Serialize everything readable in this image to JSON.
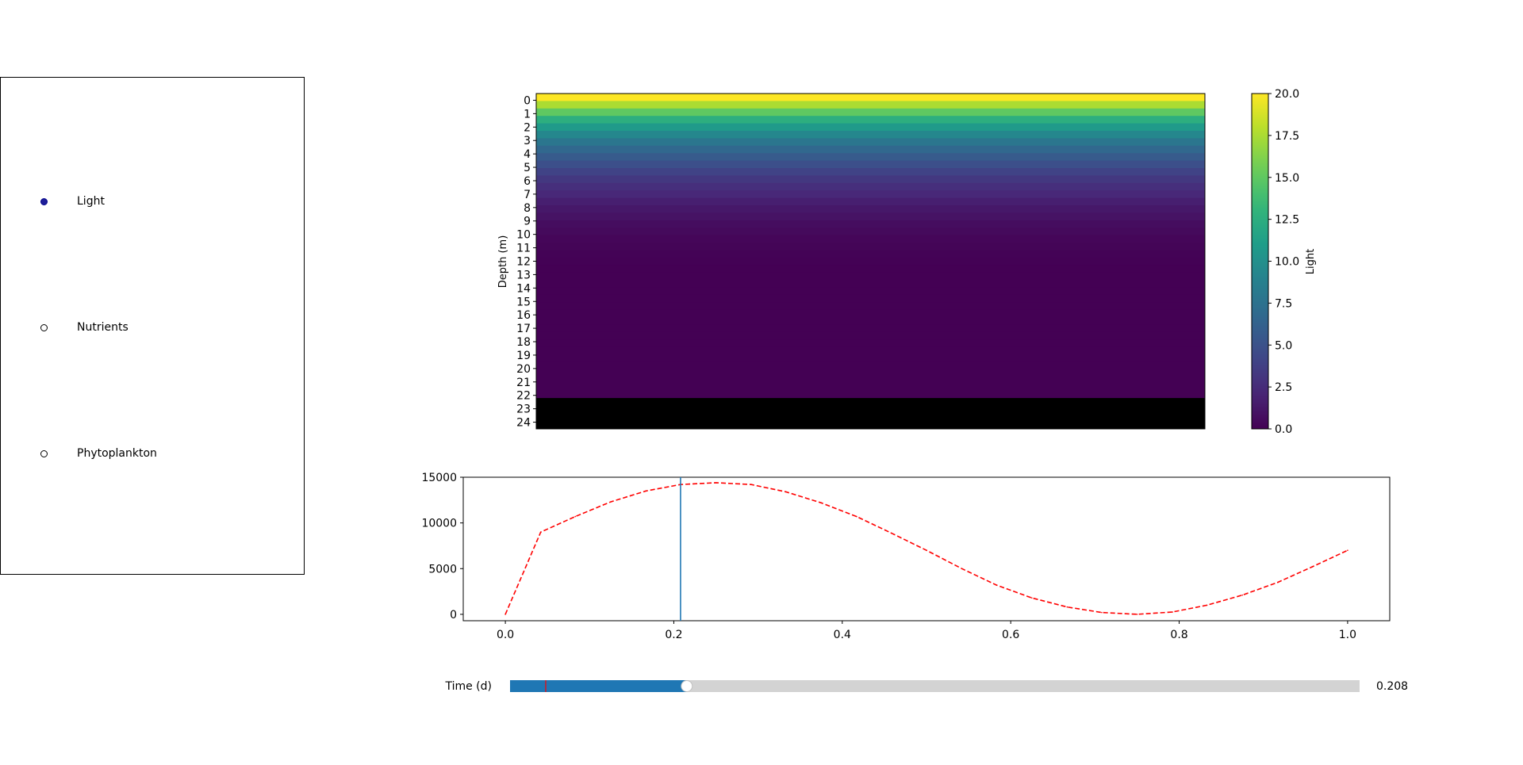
{
  "radio": {
    "options": [
      {
        "label": "Light",
        "selected": true
      },
      {
        "label": "Nutrients",
        "selected": false
      },
      {
        "label": "Phytoplankton",
        "selected": false
      }
    ],
    "active_color": "#00008b"
  },
  "slider": {
    "label": "Time (d)",
    "value_text": "0.208",
    "value": 0.208,
    "min": 0,
    "max": 1,
    "init_value": 0.042,
    "fill_color": "#1f77b4",
    "track_color": "#d3d3d3",
    "init_marker_color": "#ff0000"
  },
  "chart_data": [
    {
      "type": "heatmap",
      "ylabel": "Depth (m)",
      "yticks": [
        "0",
        "1",
        "2",
        "3",
        "4",
        "5",
        "6",
        "7",
        "8",
        "9",
        "10",
        "11",
        "12",
        "13",
        "14",
        "15",
        "16",
        "17",
        "18",
        "19",
        "20",
        "21",
        "22",
        "23",
        "24"
      ],
      "colormap": "viridis",
      "colorbar": {
        "label": "Light",
        "min": 0,
        "max": 20,
        "ticks": [
          "0.0",
          "2.5",
          "5.0",
          "7.5",
          "10.0",
          "12.5",
          "15.0",
          "17.5",
          "20.0"
        ]
      },
      "row_values": [
        20.0,
        17.5,
        15.0,
        12.5,
        10.8,
        9.3,
        7.9,
        6.7,
        5.7,
        4.8,
        4.0,
        3.3,
        2.7,
        2.2,
        1.7,
        1.3,
        1.0,
        0.7,
        0.5,
        0.3,
        0.2,
        0.1,
        0.05,
        0.02,
        0.0,
        0.0,
        0.0,
        0.0,
        0.0,
        0.0,
        0.0,
        0.0,
        0.0,
        0.0,
        0.0,
        0.0,
        0.0,
        0.0,
        0.0,
        0.0,
        0.0,
        0.0,
        0.0,
        0.0,
        0.0
      ],
      "masked_below_depth": 22.2,
      "masked_color": "#000000"
    },
    {
      "type": "line",
      "x": [
        0.0,
        0.042,
        0.083,
        0.125,
        0.167,
        0.208,
        0.25,
        0.292,
        0.333,
        0.375,
        0.417,
        0.458,
        0.5,
        0.542,
        0.583,
        0.625,
        0.667,
        0.708,
        0.75,
        0.792,
        0.833,
        0.875,
        0.917,
        0.958,
        1.0
      ],
      "y": [
        0,
        9000,
        10700,
        12300,
        13500,
        14200,
        14400,
        14200,
        13400,
        12200,
        10700,
        8900,
        7000,
        5000,
        3200,
        1800,
        800,
        200,
        0,
        250,
        1000,
        2100,
        3500,
        5200,
        7000
      ],
      "xticks": [
        "0.0",
        "0.2",
        "0.4",
        "0.6",
        "0.8",
        "1.0"
      ],
      "yticks": [
        "0",
        "5000",
        "10000",
        "15000"
      ],
      "xlim": [
        -0.05,
        1.05
      ],
      "ylim": [
        -700,
        15000
      ],
      "line_color": "#ff0000",
      "line_style": "dashed",
      "marker_x": 0.208,
      "marker_color": "#1f77b4"
    }
  ]
}
